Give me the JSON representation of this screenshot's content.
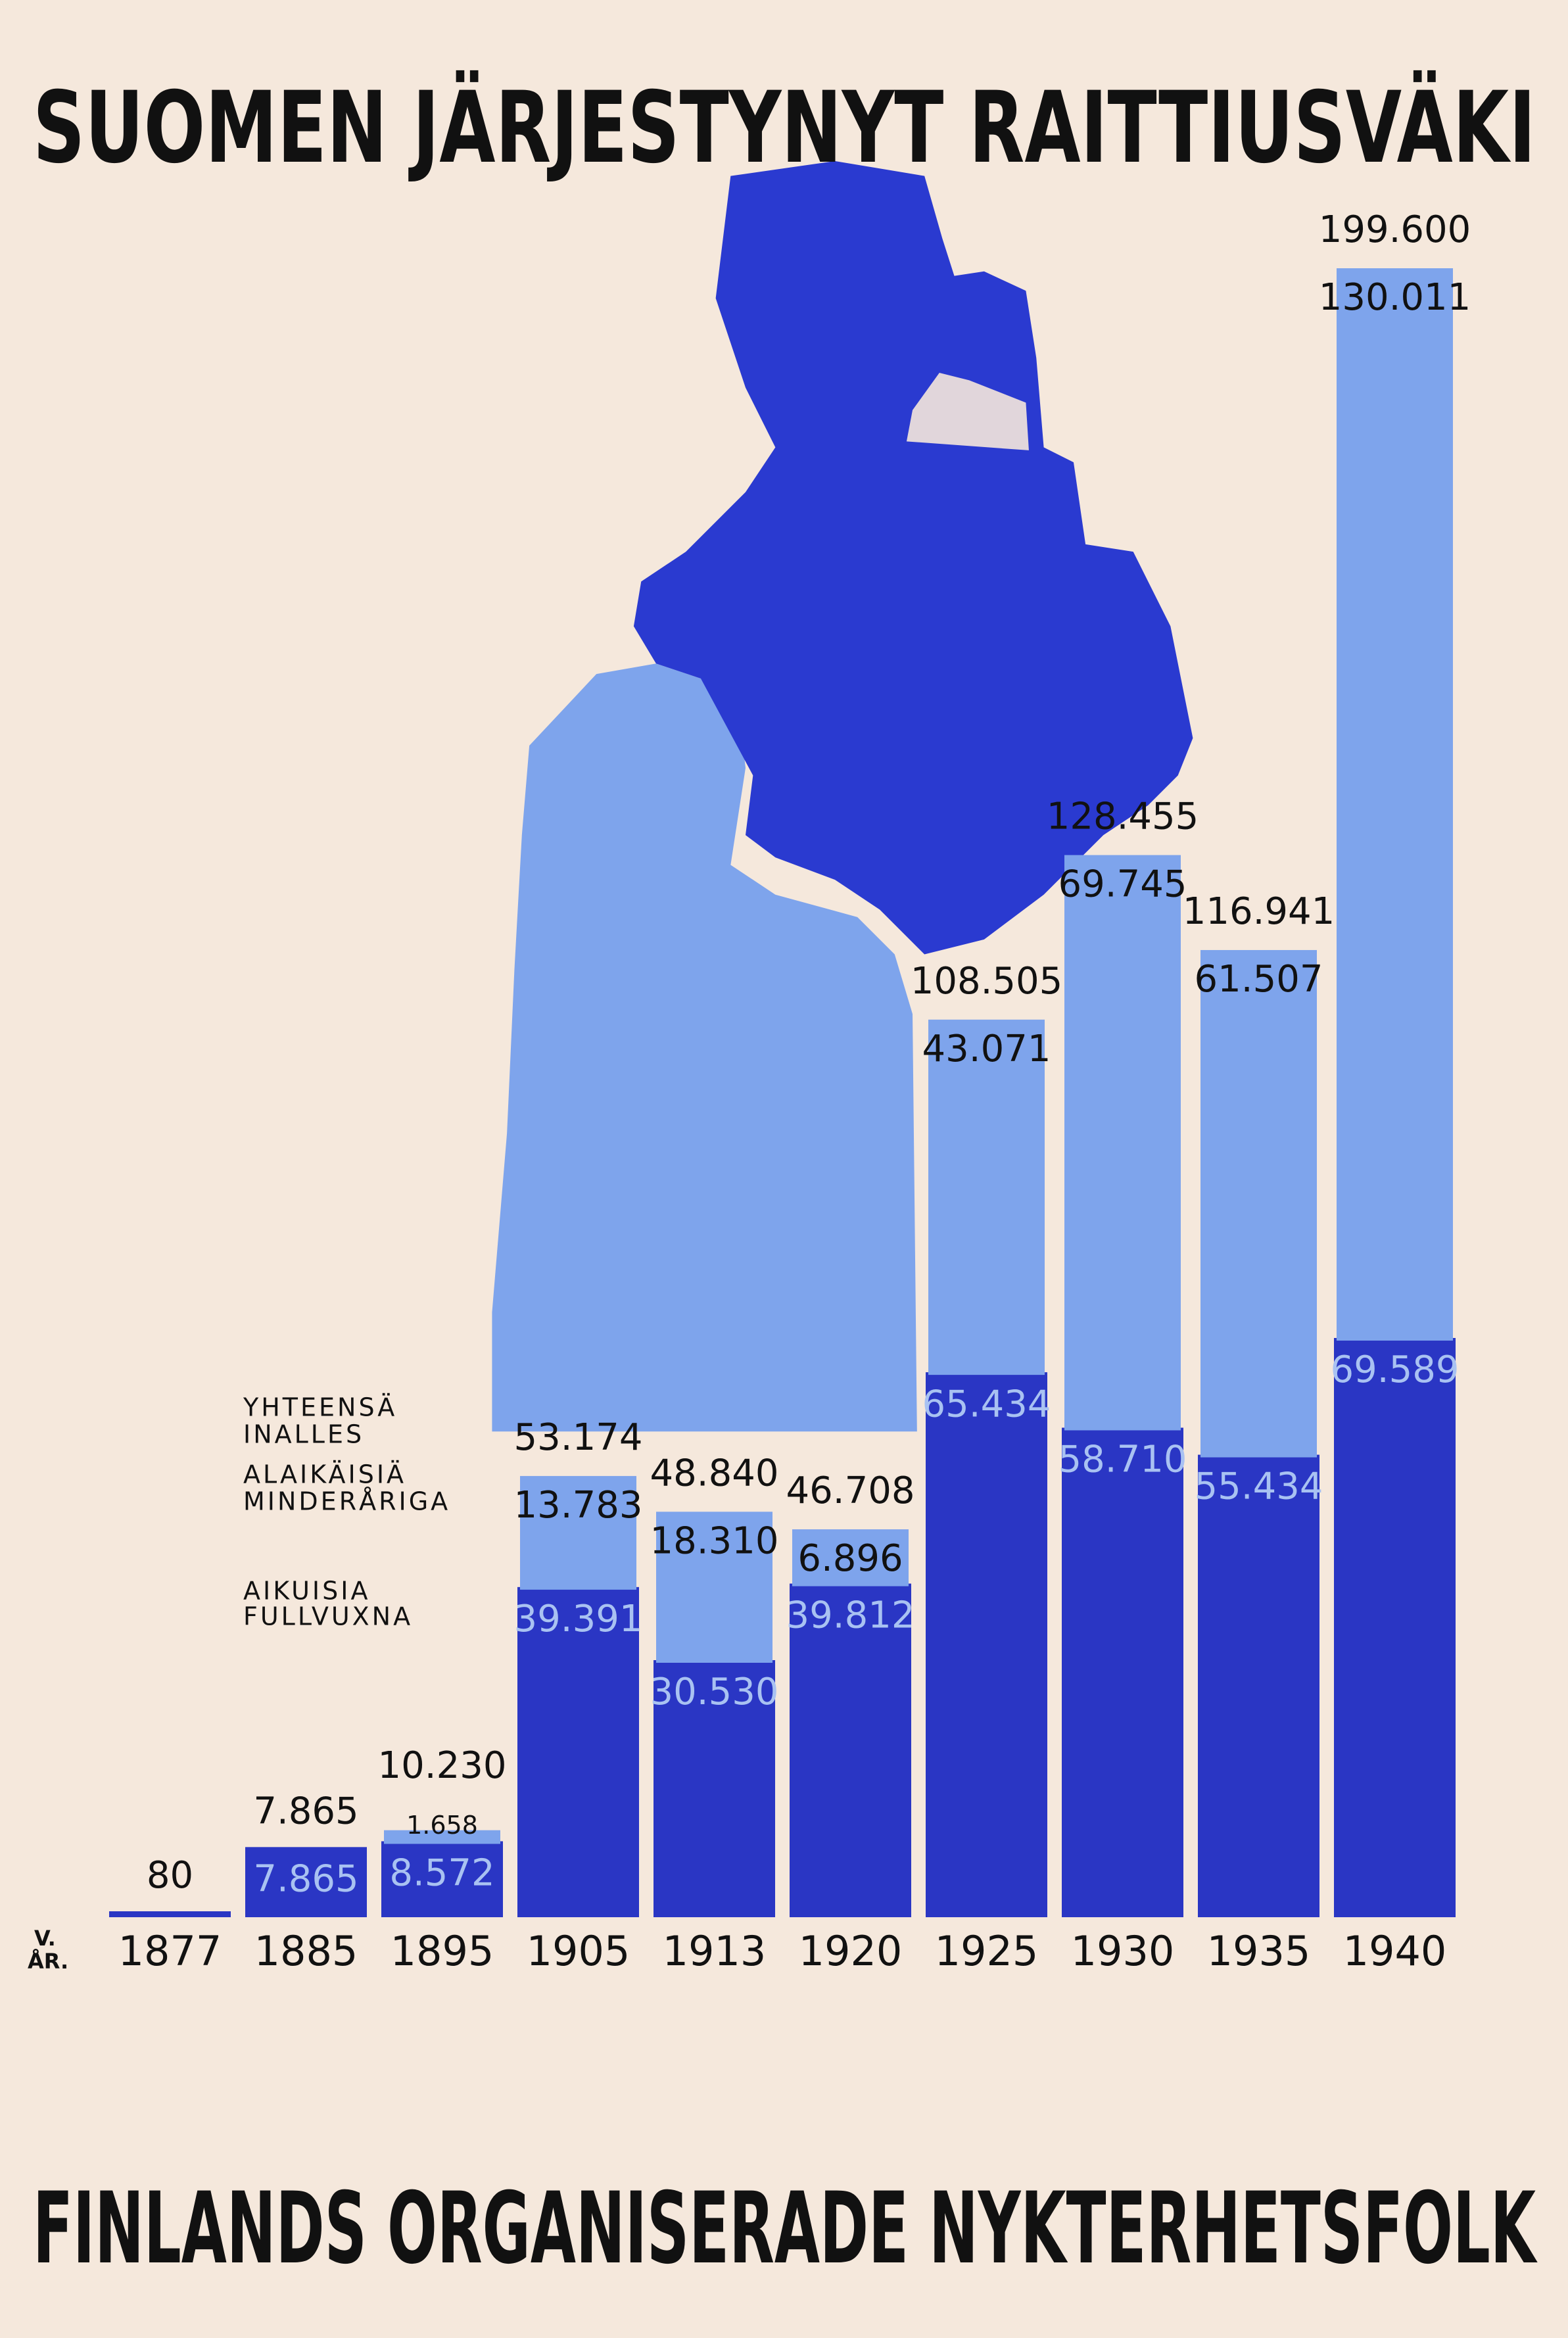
{
  "chart_data": {
    "type": "stacked-bar",
    "title": "SUOMEN JÄRJESTYNYT RAITTIUSVÄKI",
    "subtitle": "FINLANDS ORGANISERADE NYKTERHETSFOLK",
    "x_label": [
      "V.",
      "ÅR."
    ],
    "categories": [
      "1877",
      "1885",
      "1895",
      "1905",
      "1913",
      "1920",
      "1925",
      "1930",
      "1935",
      "1940"
    ],
    "totals": {
      "name": [
        "YHTEENSÄ",
        "INALLES"
      ],
      "values": [
        80,
        7865,
        10230,
        53174,
        48840,
        46708,
        108505,
        128455,
        116941,
        199600
      ],
      "value_labels": [
        "80",
        "7.865",
        "10.230",
        "53.174",
        "48.840",
        "46.708",
        "108.505",
        "128.455",
        "116.941",
        "199.600"
      ]
    },
    "series": [
      {
        "name": [
          "AIKUISIA",
          "FULLVUXNA"
        ],
        "color": "#2a36c4",
        "values": [
          80,
          7865,
          8572,
          39391,
          30530,
          39812,
          65434,
          58710,
          55434,
          69589
        ],
        "value_labels": [
          null,
          "7.865",
          "8.572",
          "39.391",
          "30.530",
          "39.812",
          "65.434",
          "58.710",
          "55.434",
          "69.589"
        ]
      },
      {
        "name": [
          "ALAIKÄISIÄ",
          "MINDERÅRIGA"
        ],
        "color": "#7ea4ec",
        "values": [
          null,
          null,
          1658,
          13783,
          18310,
          6896,
          43071,
          69745,
          61507,
          130011
        ],
        "value_labels": [
          null,
          null,
          "1.658",
          "13.783",
          "18.310",
          "6.896",
          "43.071",
          "69.745",
          "61.507",
          "130.011"
        ]
      }
    ]
  }
}
